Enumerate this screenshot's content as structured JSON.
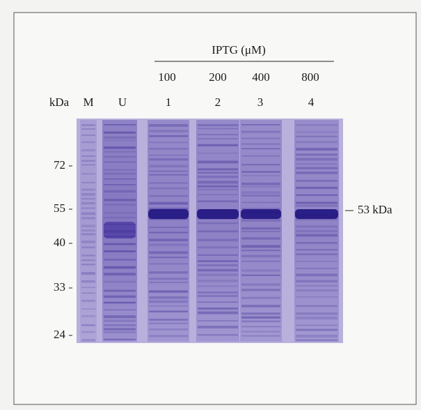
{
  "figure": {
    "treatment_label": "IPTG (μM)",
    "concentrations": [
      "100",
      "200",
      "400",
      "800"
    ],
    "lane_header": "kDa",
    "lanes": [
      "M",
      "U",
      "1",
      "2",
      "3",
      "4"
    ],
    "markers": [
      "72",
      "55",
      "40",
      "33",
      "24"
    ],
    "band_label": "53 kDa"
  }
}
